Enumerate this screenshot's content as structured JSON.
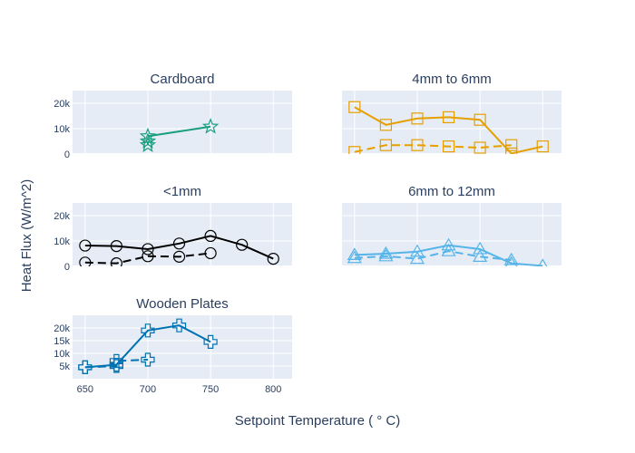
{
  "chart_data": {
    "type": "line",
    "xlabel": "Setpoint Temperature ( ° C)",
    "ylabel": "Heat Flux (W/m^2)",
    "x_ticks": [
      650,
      700,
      750,
      800
    ],
    "xlim": [
      640,
      815
    ],
    "panels": [
      {
        "title": "Cardboard",
        "color": "#1a9e80",
        "marker": "star",
        "ylim": [
          0,
          25000
        ],
        "y_ticks": [
          0,
          10000,
          20000
        ],
        "y_tick_labels": [
          "0",
          "10k",
          "20k"
        ],
        "series": [
          {
            "dash": "solid",
            "x": [
              700,
              750
            ],
            "y": [
              7000,
              10800
            ]
          },
          {
            "dash": "dash",
            "x": [
              700,
              700
            ],
            "y": [
              3500,
              5000
            ]
          }
        ],
        "show_x_ticks": false
      },
      {
        "title": "4mm to 6mm",
        "color": "#e69f00",
        "marker": "square",
        "ylim": [
          0,
          25000
        ],
        "y_ticks": [
          0,
          10000,
          20000
        ],
        "y_tick_labels": [
          "",
          "",
          ""
        ],
        "series": [
          {
            "dash": "solid",
            "x": [
              650,
              675,
              700,
              725,
              750,
              775,
              800
            ],
            "y": [
              18500,
              11500,
              14000,
              14500,
              13500,
              200,
              3000
            ]
          },
          {
            "dash": "dash",
            "x": [
              650,
              675,
              700,
              725,
              750,
              775
            ],
            "y": [
              800,
              3500,
              3500,
              3000,
              2500,
              3500
            ]
          }
        ],
        "show_x_ticks": false
      },
      {
        "title": "<1mm",
        "color": "#000000",
        "marker": "circle",
        "ylim": [
          0,
          25000
        ],
        "y_ticks": [
          0,
          10000,
          20000
        ],
        "y_tick_labels": [
          "0",
          "10k",
          "20k"
        ],
        "series": [
          {
            "dash": "solid",
            "x": [
              650,
              675,
              700,
              725,
              750,
              775,
              800
            ],
            "y": [
              8200,
              8000,
              6800,
              9000,
              12000,
              8500,
              3000
            ]
          },
          {
            "dash": "dash",
            "x": [
              650,
              675,
              700,
              725,
              750
            ],
            "y": [
              1500,
              1200,
              4000,
              3800,
              5200
            ]
          }
        ],
        "show_x_ticks": false
      },
      {
        "title": "6mm to 12mm",
        "color": "#56b4e9",
        "marker": "triangle",
        "ylim": [
          0,
          25000
        ],
        "y_ticks": [
          0,
          10000,
          20000
        ],
        "y_tick_labels": [
          "",
          "",
          ""
        ],
        "series": [
          {
            "dash": "solid",
            "x": [
              650,
              675,
              700,
              725,
              750,
              775,
              800
            ],
            "y": [
              4500,
              5000,
              5800,
              8300,
              6800,
              1200,
              200
            ]
          },
          {
            "dash": "dash",
            "x": [
              650,
              675,
              700,
              725,
              750,
              775
            ],
            "y": [
              3300,
              4000,
              3000,
              6000,
              3800,
              2500
            ]
          }
        ],
        "show_x_ticks": false
      },
      {
        "title": "Wooden Plates",
        "color": "#0072b2",
        "marker": "cross",
        "ylim": [
          0,
          25000
        ],
        "y_ticks": [
          5000,
          10000,
          15000,
          20000
        ],
        "y_tick_labels": [
          "5k",
          "10k",
          "15k",
          "20k"
        ],
        "series": [
          {
            "dash": "solid",
            "x": [
              650,
              675,
              700,
              725,
              750
            ],
            "y": [
              4500,
              5500,
              19000,
              21000,
              14500
            ]
          },
          {
            "dash": "dash",
            "x": [
              650,
              675,
              675,
              700
            ],
            "y": [
              4500,
              5000,
              7000,
              7500
            ]
          }
        ],
        "show_x_ticks": true
      }
    ]
  }
}
